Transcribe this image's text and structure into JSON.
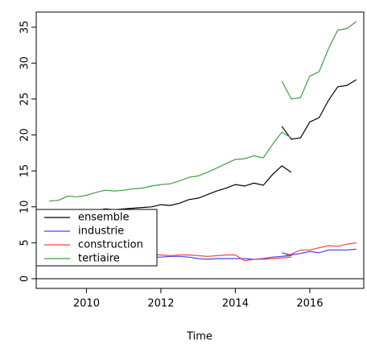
{
  "chart_data": {
    "type": "line",
    "xlabel": "Time",
    "x": [
      2009,
      2009.25,
      2009.5,
      2009.75,
      2010,
      2010.25,
      2010.5,
      2010.75,
      2011,
      2011.25,
      2011.5,
      2011.75,
      2012,
      2012.25,
      2012.5,
      2012.75,
      2013,
      2013.25,
      2013.5,
      2013.75,
      2014,
      2014.25,
      2014.5,
      2014.75,
      2015,
      2015.25,
      2015.5,
      null,
      2015.25,
      2015.5,
      2015.75,
      2016,
      2016.25,
      2016.5,
      2016.75,
      2017,
      2017.25
    ],
    "series": [
      {
        "name": "ensemble",
        "color": "#000000",
        "values": [
          8.8,
          8.9,
          9.1,
          9.2,
          9.3,
          9.5,
          9.7,
          9.6,
          9.7,
          9.8,
          9.9,
          10.0,
          10.3,
          10.2,
          10.5,
          11.0,
          11.2,
          11.7,
          12.2,
          12.6,
          13.1,
          12.9,
          13.3,
          13.0,
          14.5,
          15.7,
          14.8,
          null,
          21.2,
          19.4,
          19.6,
          21.8,
          22.4,
          24.8,
          26.7,
          26.9,
          27.7
        ]
      },
      {
        "name": "industrie",
        "color": "#4040ff",
        "values": [
          3.0,
          3.0,
          3.1,
          3.0,
          3.0,
          3.1,
          3.0,
          3.0,
          3.0,
          3.1,
          3.0,
          3.0,
          3.0,
          3.1,
          3.1,
          3.0,
          2.8,
          2.7,
          2.8,
          2.8,
          2.8,
          2.8,
          2.7,
          2.8,
          3.0,
          3.1,
          3.2,
          null,
          3.6,
          3.3,
          3.5,
          3.8,
          3.6,
          4.0,
          4.0,
          4.0,
          4.1
        ]
      },
      {
        "name": "construction",
        "color": "#ff4040",
        "values": [
          3.3,
          3.3,
          3.4,
          3.3,
          3.3,
          3.4,
          3.3,
          3.3,
          3.3,
          3.4,
          3.3,
          3.4,
          3.3,
          3.2,
          3.3,
          3.3,
          3.2,
          3.1,
          3.2,
          3.3,
          3.3,
          2.5,
          2.7,
          2.7,
          2.8,
          2.9,
          3.0,
          null,
          3.1,
          3.4,
          4.0,
          4.0,
          4.3,
          4.6,
          4.5,
          4.8,
          5.0
        ]
      },
      {
        "name": "tertiaire",
        "color": "#40a040",
        "values": [
          10.8,
          10.9,
          11.5,
          11.4,
          11.6,
          12.0,
          12.3,
          12.2,
          12.3,
          12.5,
          12.6,
          12.9,
          13.1,
          13.2,
          13.6,
          14.1,
          14.3,
          14.8,
          15.4,
          16.0,
          16.6,
          16.7,
          17.1,
          16.8,
          18.7,
          20.4,
          19.6,
          null,
          27.5,
          25.0,
          25.2,
          28.2,
          28.8,
          32.0,
          34.6,
          34.8,
          35.8
        ]
      }
    ],
    "hlines": [
      0
    ],
    "xlim": [
      2008.65,
      2017.45
    ],
    "xticks": [
      2010,
      2012,
      2014,
      2016
    ],
    "ylim": [
      -1.35,
      37.1
    ],
    "yticks": [
      0,
      5,
      10,
      15,
      20,
      25,
      30,
      35
    ],
    "legend": "bottom-left"
  }
}
